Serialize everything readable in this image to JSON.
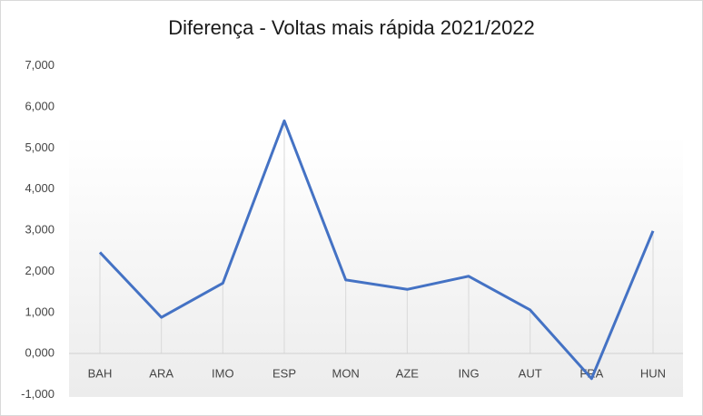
{
  "chart_data": {
    "type": "line",
    "title": "Diferença - Voltas mais rápida 2021/2022",
    "categories": [
      "BAH",
      "ARA",
      "IMO",
      "ESP",
      "MON",
      "AZE",
      "ING",
      "AUT",
      "FRA",
      "HUN"
    ],
    "series": [
      {
        "values": [
          2.45,
          0.87,
          1.7,
          5.65,
          1.78,
          1.55,
          1.87,
          1.05,
          -0.62,
          2.97
        ]
      }
    ],
    "ylim": [
      -1,
      7
    ],
    "yticks": [
      "-1,000",
      "0,000",
      "1,000",
      "2,000",
      "3,000",
      "4,000",
      "5,000",
      "6,000",
      "7,000"
    ],
    "xlabel": "",
    "ylabel": "",
    "grid": "vertical-drop-lines",
    "legend": "none",
    "line_color": "#4472c4"
  }
}
